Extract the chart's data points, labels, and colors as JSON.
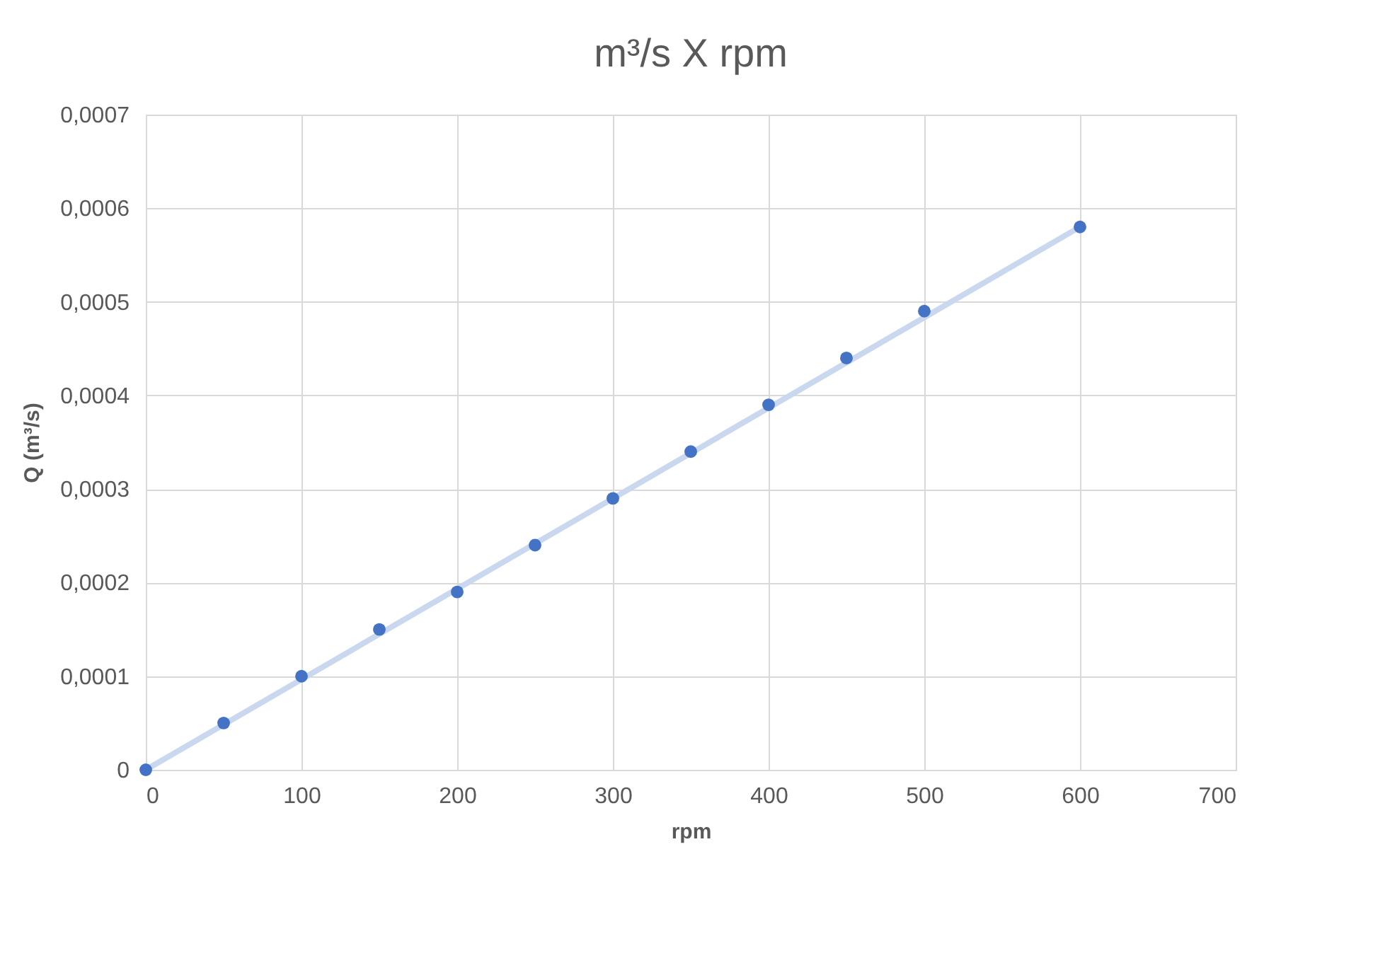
{
  "chart_data": {
    "type": "scatter",
    "title": "m³/s X rpm",
    "xlabel": "rpm",
    "ylabel": "Q (m³/s)",
    "x": [
      0,
      50,
      100,
      150,
      200,
      250,
      300,
      350,
      400,
      450,
      500,
      600
    ],
    "series": [
      {
        "type": "line",
        "color": "#c9d8ee",
        "x": [
          0,
          600
        ],
        "values": [
          0,
          0.00058
        ],
        "marker": "none",
        "line_style": "solid"
      },
      {
        "color": "#4472c4",
        "values": [
          0,
          5e-05,
          0.0001,
          0.00015,
          0.00019,
          0.00024,
          0.00029,
          0.00034,
          0.00039,
          0.00044,
          0.00049,
          0.00058
        ],
        "marker": "circle"
      }
    ],
    "xlim": [
      0,
      700
    ],
    "xticks": [
      0,
      100,
      200,
      300,
      400,
      500,
      600,
      700
    ],
    "ylim": [
      0,
      0.0007
    ],
    "yticks": [
      0,
      {
        "value": 0.0001,
        "label": "0,0001"
      },
      {
        "value": 0.0002,
        "label": "0,0002"
      },
      {
        "value": 0.0003,
        "label": "0,0003"
      },
      {
        "value": 0.0004,
        "label": "0,0004"
      },
      {
        "value": 0.0005,
        "label": "0,0005"
      },
      {
        "value": 0.0006,
        "label": "0,0006"
      },
      {
        "value": 0.0007,
        "label": "0,0007"
      }
    ],
    "grid": true,
    "legend": false
  }
}
